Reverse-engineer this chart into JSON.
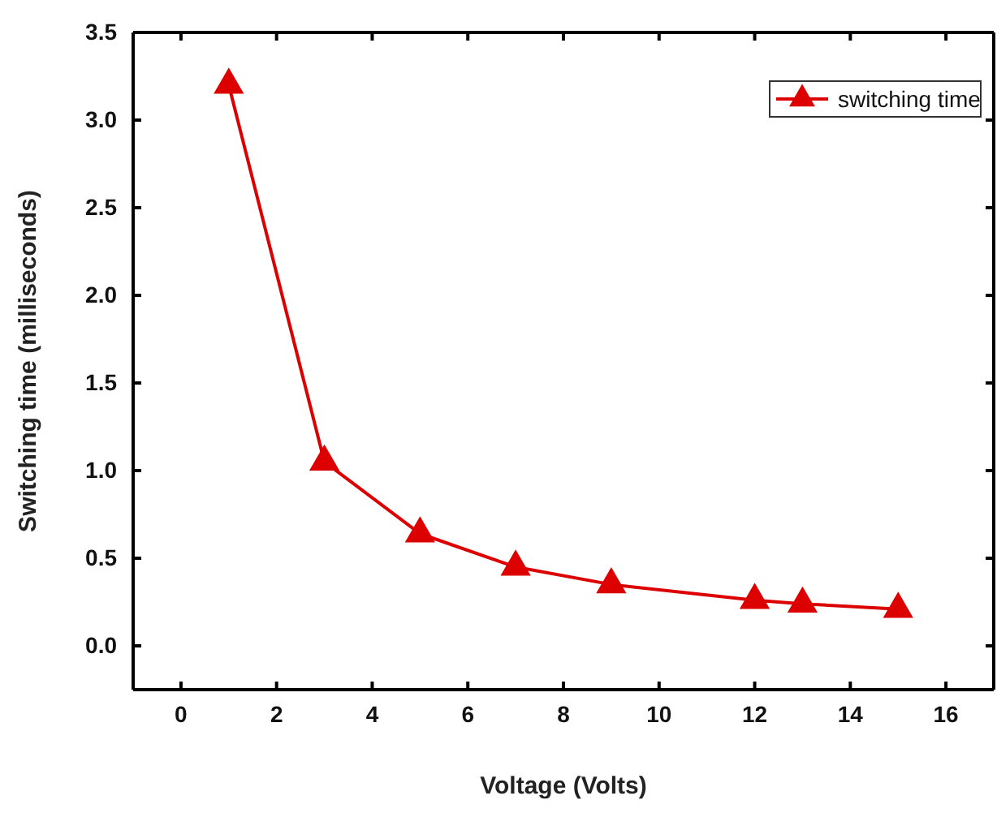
{
  "chart_data": {
    "type": "line",
    "xlabel": "Voltage (Volts)",
    "ylabel": "Switching time (milliseconds)",
    "x": [
      1,
      3,
      5,
      7,
      9,
      12,
      13,
      15
    ],
    "series": [
      {
        "name": "switching time",
        "color": "#dd0000",
        "values": [
          3.2,
          1.05,
          0.64,
          0.45,
          0.35,
          0.26,
          0.24,
          0.21
        ]
      }
    ],
    "xlim": [
      -1,
      17
    ],
    "xticks": [
      0,
      2,
      4,
      6,
      8,
      10,
      12,
      14,
      16
    ],
    "ylim": [
      -0.25,
      3.5
    ],
    "yticks": [
      {
        "value": 0,
        "label": "0.0"
      },
      {
        "value": 0.5,
        "label": "0.5"
      },
      {
        "value": 1,
        "label": "1.0"
      },
      {
        "value": 1.5,
        "label": "1.5"
      },
      {
        "value": 2,
        "label": "2.0"
      },
      {
        "value": 2.5,
        "label": "2.5"
      },
      {
        "value": 3,
        "label": "3.0"
      },
      {
        "value": 3.5,
        "label": "3.5"
      }
    ],
    "marker": "triangle",
    "line_style": "solid",
    "legend": "top right",
    "grid": false
  }
}
